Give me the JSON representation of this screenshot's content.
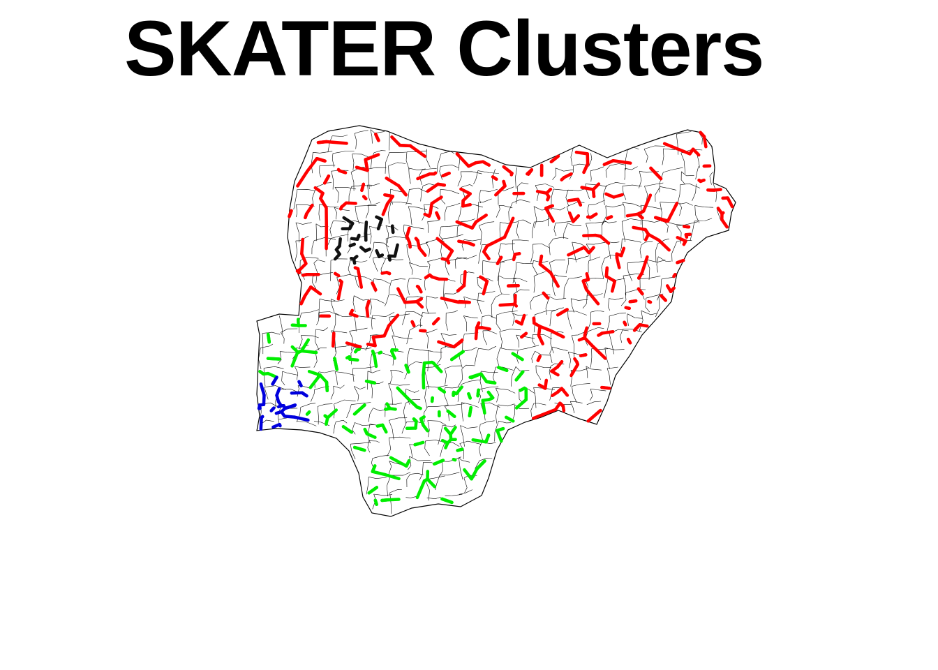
{
  "title": "SKATER Clusters",
  "map": {
    "region": "nigeria-lga-boundaries",
    "boundary_color": "#000000",
    "fill_color": "#ffffff"
  },
  "clusters": [
    {
      "id": "cluster-1",
      "color": "#ff0000"
    },
    {
      "id": "cluster-2",
      "color": "#00ee00"
    },
    {
      "id": "cluster-3",
      "color": "#0000dd"
    },
    {
      "id": "cluster-4",
      "color": "#111111"
    }
  ]
}
